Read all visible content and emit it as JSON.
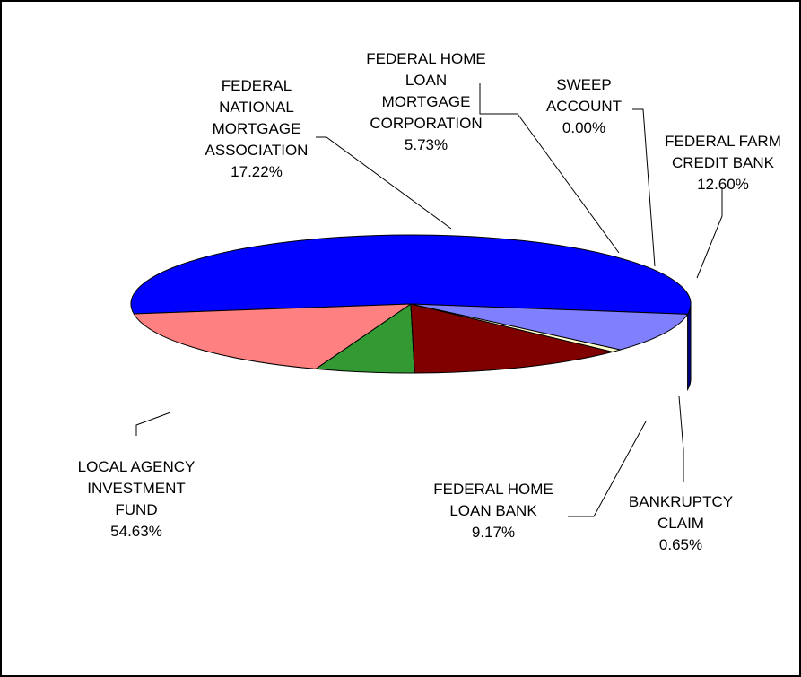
{
  "chart_data": {
    "type": "pie",
    "slices": [
      {
        "label_lines": [
          "LOCAL AGENCY",
          "INVESTMENT",
          "FUND"
        ],
        "value": 54.63,
        "value_label": "54.63%",
        "color": "#0000FF",
        "side_color": "#000080"
      },
      {
        "label_lines": [
          "FEDERAL",
          "NATIONAL",
          "MORTGAGE",
          "ASSOCIATION"
        ],
        "value": 17.22,
        "value_label": "17.22%",
        "color": "#FF8080",
        "side_color": "#804040"
      },
      {
        "label_lines": [
          "FEDERAL HOME",
          "LOAN",
          "MORTGAGE",
          "CORPORATION"
        ],
        "value": 5.73,
        "value_label": "5.73%",
        "color": "#339933",
        "side_color": "#1A4D1A"
      },
      {
        "label_lines": [
          "SWEEP",
          "ACCOUNT"
        ],
        "value": 0.0,
        "value_label": "0.00%",
        "color": "#008080",
        "side_color": "#004040"
      },
      {
        "label_lines": [
          "FEDERAL FARM",
          "CREDIT BANK"
        ],
        "value": 12.6,
        "value_label": "12.60%",
        "color": "#800000",
        "side_color": "#400000"
      },
      {
        "label_lines": [
          "BANKRUPTCY",
          "CLAIM"
        ],
        "value": 0.65,
        "value_label": "0.65%",
        "color": "#FFFFCC",
        "side_color": "#333333"
      },
      {
        "label_lines": [
          "FEDERAL HOME",
          "LOAN BANK"
        ],
        "value": 9.17,
        "value_label": "9.17%",
        "color": "#8080FF",
        "side_color": "#404080"
      }
    ]
  }
}
